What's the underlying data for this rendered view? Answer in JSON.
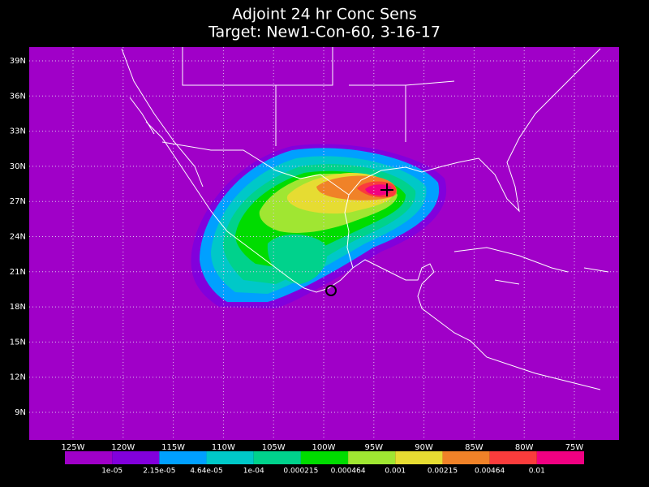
{
  "header": {
    "title": "Adjoint 24 hr Conc Sens",
    "subtitle": "Target: New1-Con-60, 3-16-17"
  },
  "map": {
    "background": "#a000c8",
    "lat_labels": [
      "39N",
      "36N",
      "33N",
      "30N",
      "27N",
      "24N",
      "21N",
      "18N",
      "15N",
      "12N",
      "9N"
    ],
    "lon_labels": [
      "125W",
      "120W",
      "115W",
      "110W",
      "105W",
      "100W",
      "95W",
      "90W",
      "85W",
      "80W",
      "75W"
    ]
  },
  "colorbar": {
    "colors": [
      "#a000c8",
      "#8200dc",
      "#00a0ff",
      "#00c8c8",
      "#00d28c",
      "#00dc00",
      "#a0e632",
      "#e6dc32",
      "#f08228",
      "#fa3c3c",
      "#f00082"
    ],
    "labels": [
      "1e-05",
      "2.15e-05",
      "4.64e-05",
      "1e-04",
      "0.000215",
      "0.000464",
      "0.001",
      "0.00215",
      "0.00464",
      "0.01"
    ]
  }
}
